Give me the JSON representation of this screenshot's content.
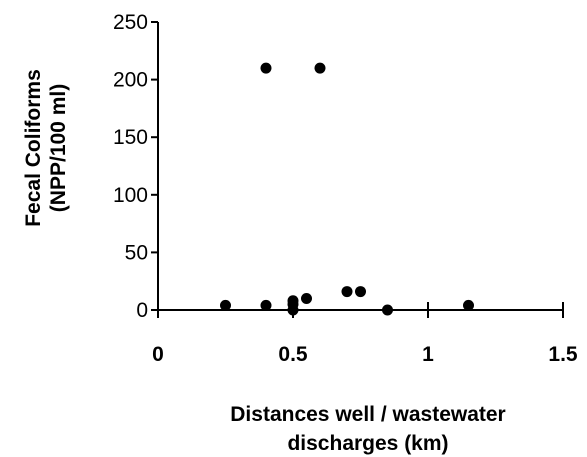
{
  "chart_data": {
    "type": "scatter",
    "title": "",
    "xlabel_lines": [
      "Distances well / wastewater",
      "discharges (km)"
    ],
    "ylabel_lines": [
      "Fecal Coliforms",
      "(NPP/100 ml)"
    ],
    "xlim": [
      0,
      1.5
    ],
    "ylim": [
      0,
      250
    ],
    "x_ticks": [
      0,
      0.5,
      1,
      1.5
    ],
    "x_tick_labels": [
      "0",
      "0.5",
      "1",
      "1.5"
    ],
    "y_ticks": [
      0,
      50,
      100,
      150,
      200,
      250
    ],
    "y_tick_labels": [
      "0",
      "50",
      "100",
      "150",
      "200",
      "250"
    ],
    "grid": false,
    "marker_color": "#000000",
    "points": [
      {
        "x": 0.25,
        "y": 4
      },
      {
        "x": 0.4,
        "y": 4
      },
      {
        "x": 0.4,
        "y": 210
      },
      {
        "x": 0.5,
        "y": 0
      },
      {
        "x": 0.5,
        "y": 5
      },
      {
        "x": 0.5,
        "y": 8
      },
      {
        "x": 0.55,
        "y": 10
      },
      {
        "x": 0.6,
        "y": 210
      },
      {
        "x": 0.7,
        "y": 16
      },
      {
        "x": 0.75,
        "y": 16
      },
      {
        "x": 0.85,
        "y": 0
      },
      {
        "x": 1.15,
        "y": 4
      }
    ]
  }
}
